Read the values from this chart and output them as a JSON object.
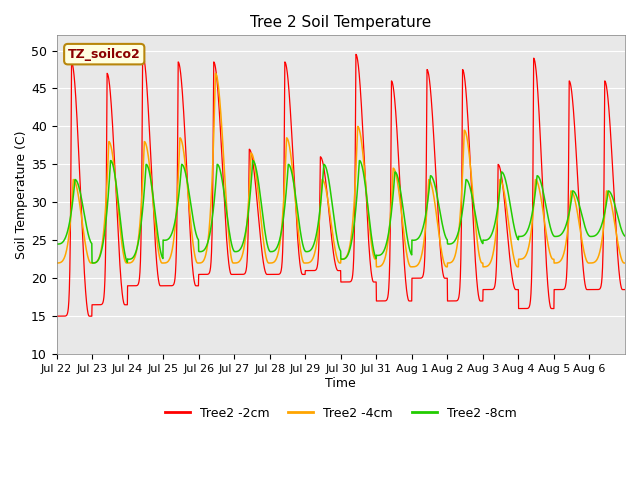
{
  "title": "Tree 2 Soil Temperature",
  "xlabel": "Time",
  "ylabel": "Soil Temperature (C)",
  "ylim": [
    10,
    52
  ],
  "yticks": [
    10,
    15,
    20,
    25,
    30,
    35,
    40,
    45,
    50
  ],
  "annotation_text": "TZ_soilco2",
  "colors": {
    "2cm": "#FF0000",
    "4cm": "#FFA500",
    "8cm": "#22CC00"
  },
  "legend_labels": [
    "Tree2 -2cm",
    "Tree2 -4cm",
    "Tree2 -8cm"
  ],
  "background_color": "#E8E8E8",
  "fig_background": "#FFFFFF",
  "n_days": 16,
  "date_labels": [
    "Jul 22",
    "Jul 23",
    "Jul 24",
    "Jul 25",
    "Jul 26",
    "Jul 27",
    "Jul 28",
    "Jul 29",
    "Jul 30",
    "Jul 31",
    "Aug 1",
    "Aug 2",
    "Aug 3",
    "Aug 4",
    "Aug 5",
    "Aug 6"
  ],
  "ppd": 144,
  "peaks_2cm": [
    48.5,
    47.0,
    49.5,
    48.5,
    48.5,
    37.0,
    48.5,
    36.0,
    49.5,
    46.0,
    47.5,
    47.5,
    35.0,
    49.0,
    46.0,
    46.0
  ],
  "mins_2cm": [
    15.0,
    16.5,
    19.0,
    19.0,
    20.5,
    20.5,
    20.5,
    21.0,
    19.5,
    17.0,
    20.0,
    17.0,
    18.5,
    16.0,
    18.5,
    18.5
  ],
  "peaks_4cm": [
    33.0,
    38.0,
    38.0,
    38.5,
    47.0,
    36.5,
    38.5,
    33.0,
    40.0,
    34.5,
    33.0,
    39.5,
    33.0,
    33.0,
    31.5,
    31.5
  ],
  "mins_4cm": [
    22.0,
    22.0,
    22.0,
    22.0,
    22.0,
    22.0,
    22.0,
    22.0,
    22.5,
    21.5,
    21.5,
    22.0,
    21.5,
    22.5,
    22.0,
    22.0
  ],
  "peaks_8cm": [
    33.0,
    35.5,
    35.0,
    35.0,
    35.0,
    35.5,
    35.0,
    35.0,
    35.5,
    34.0,
    33.5,
    33.0,
    34.0,
    33.5,
    31.5,
    31.5
  ],
  "mins_8cm": [
    24.5,
    22.0,
    22.5,
    25.0,
    23.5,
    23.5,
    23.5,
    23.5,
    22.5,
    23.0,
    25.0,
    24.5,
    25.0,
    25.5,
    25.5,
    25.5
  ],
  "peak_phase_2cm": 0.42,
  "peak_phase_4cm": 0.47,
  "peak_phase_8cm": 0.52,
  "sharpness_2cm": 18,
  "sharpness_4cm": 4,
  "sharpness_8cm": 3
}
